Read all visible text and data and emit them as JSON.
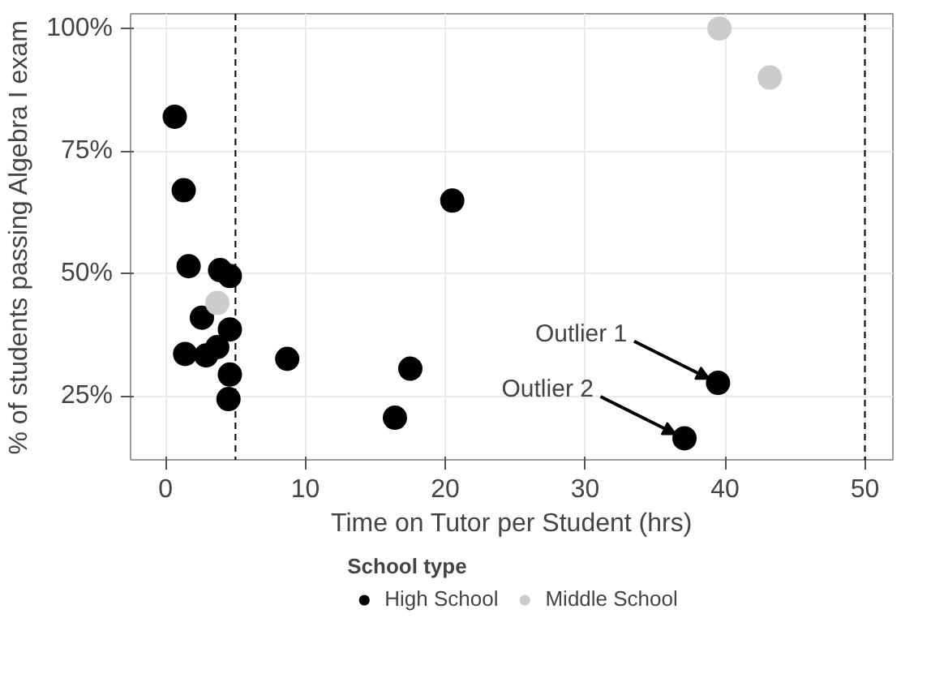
{
  "chart_data": {
    "type": "scatter",
    "xlabel": "Time on Tutor per Student (hrs)",
    "ylabel": "% of students passing Algebra I exam",
    "legend_title": "School type",
    "series": [
      {
        "name": "High School",
        "color": "#000000",
        "x": [
          0.66,
          1.3,
          1.65,
          3.9,
          4.6,
          2.6,
          4.6,
          3.7,
          1.4,
          2.9,
          4.6,
          4.5,
          8.7,
          20.5,
          17.5,
          16.4,
          39.5,
          37.1
        ],
        "values": [
          82,
          67,
          51.5,
          50.7,
          49.5,
          41,
          38.6,
          35,
          33.6,
          33.3,
          29.4,
          24.4,
          32.6,
          64.9,
          30.6,
          20.6,
          27.7,
          16.4
        ]
      },
      {
        "name": "Middle School",
        "color": "#cccccc",
        "x": [
          3.7,
          39.6,
          43.2
        ],
        "values": [
          44,
          100,
          90
        ]
      }
    ],
    "xlim": [
      -2.5,
      52
    ],
    "ylim": [
      12,
      103
    ],
    "xticks": [
      0,
      10,
      20,
      30,
      40,
      50
    ],
    "yticks": [
      {
        "value": 25,
        "label": "25%"
      },
      {
        "value": 50,
        "label": "50%"
      },
      {
        "value": 75,
        "label": "75%"
      },
      {
        "value": 100,
        "label": "100%"
      }
    ],
    "ref_lines": [
      {
        "axis": "x",
        "value": 5,
        "label": null,
        "line_style": "dashed",
        "color": "#000000"
      },
      {
        "axis": "x",
        "value": 50,
        "label": null,
        "line_style": "dashed",
        "color": "#000000"
      }
    ],
    "annotations": [
      {
        "text": "Outlier 1",
        "x": 39.5,
        "y": 27.7
      },
      {
        "text": "Outlier 2",
        "x": 37.1,
        "y": 16.4
      }
    ],
    "grid": true,
    "legend": "bottom",
    "marker": "circle"
  }
}
